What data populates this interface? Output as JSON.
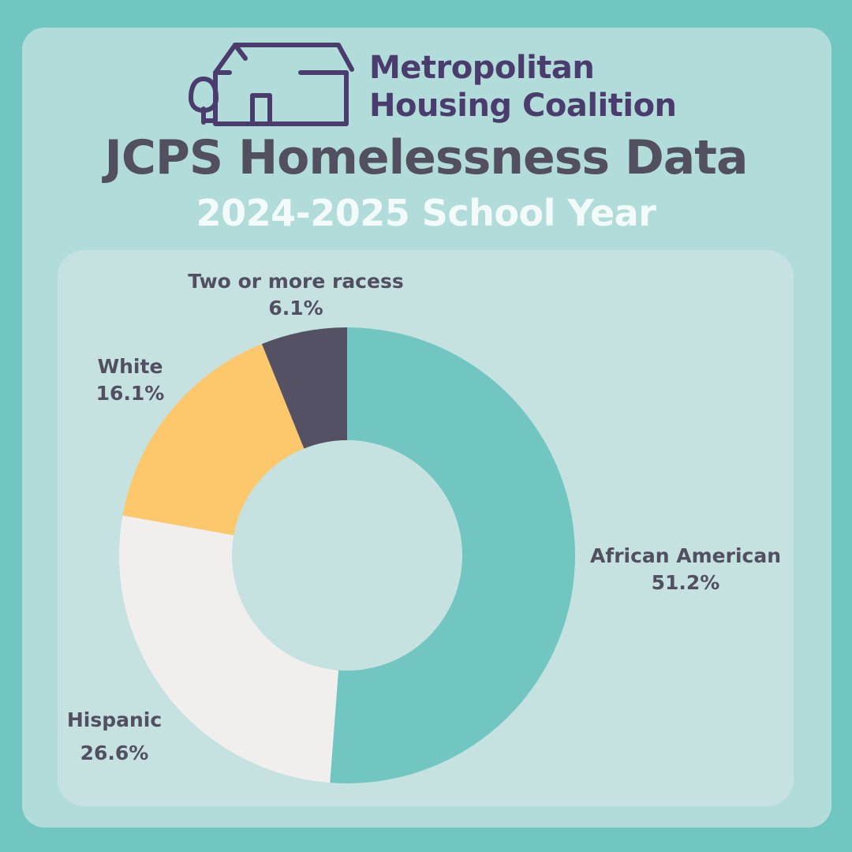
{
  "organization": {
    "name_line_1": "Metropolitan",
    "name_line_2": "Housing Coalition",
    "logo_icon": "house-with-tree-icon",
    "color": "#4a3d6e"
  },
  "header": {
    "title": "JCPS Homelessness Data",
    "subtitle": "2024-2025 School Year"
  },
  "colors": {
    "background": "#72c6c1",
    "card": "#b2dcd9",
    "chart_panel": "#c5e2e1",
    "title_text": "#514f60",
    "subtitle_text": "#f3fbfa"
  },
  "chart_data": {
    "type": "pie",
    "style": "donut",
    "title": "JCPS Homelessness Data",
    "subtitle": "2024-2025 School Year",
    "slices": [
      {
        "label": "African American",
        "value": 51.2,
        "display": "51.2%",
        "color": "#72c6c1"
      },
      {
        "label": "Hispanic",
        "value": 26.6,
        "display": "26.6%",
        "color": "#f1efee"
      },
      {
        "label": "White",
        "value": 16.1,
        "display": "16.1%",
        "color": "#fdc76c"
      },
      {
        "label": "Two or more racess",
        "value": 6.1,
        "display": "6.1%",
        "color": "#545165"
      }
    ]
  }
}
